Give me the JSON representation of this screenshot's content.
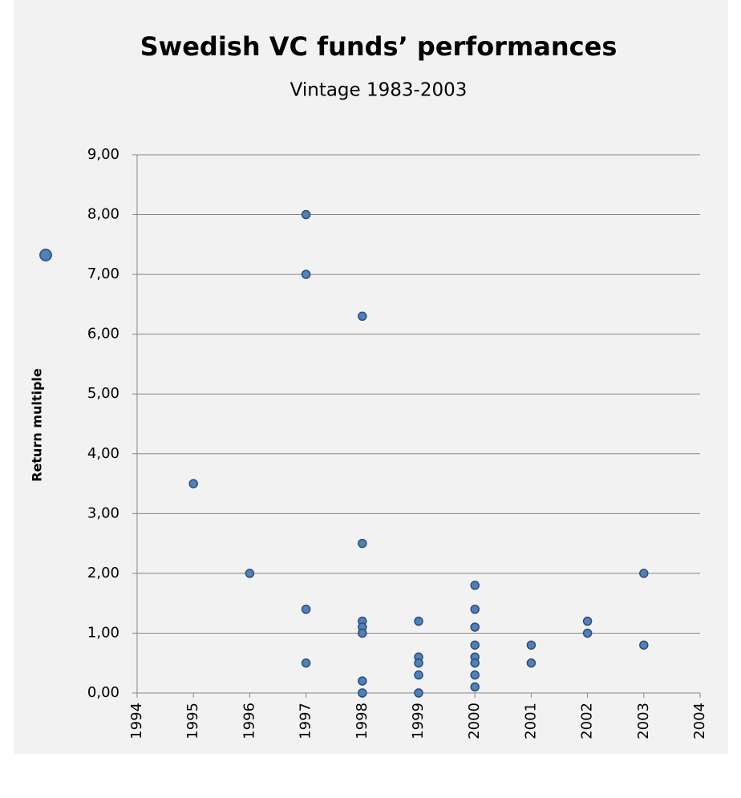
{
  "chart_data": {
    "type": "scatter",
    "title": "Swedish VC funds’ performances",
    "subtitle": "Vintage 1983-2003",
    "y_label": "Return multiple",
    "series": [
      {
        "color": "#4f81bd",
        "x": [
          1995,
          1996,
          1997,
          1997,
          1997,
          1997,
          1998,
          1998,
          1998,
          1998,
          1998,
          1998,
          1998,
          1999,
          1999,
          1999,
          1999,
          1999,
          2000,
          2000,
          2000,
          2000,
          2000,
          2000,
          2000,
          2000,
          2001,
          2001,
          2002,
          2002,
          2003,
          2003
        ],
        "values": [
          3.5,
          2.0,
          8.0,
          7.0,
          1.4,
          0.5,
          6.3,
          2.5,
          1.2,
          1.1,
          1.0,
          0.2,
          0.0,
          1.2,
          0.6,
          0.5,
          0.3,
          0.0,
          1.8,
          1.4,
          1.1,
          0.8,
          0.6,
          0.5,
          0.3,
          0.1,
          0.8,
          0.5,
          1.2,
          1.0,
          2.0,
          0.8
        ]
      }
    ],
    "xlim": [
      1994,
      2004
    ],
    "xticks": [
      1994,
      1995,
      1996,
      1997,
      1998,
      1999,
      2000,
      2001,
      2002,
      2003,
      2004
    ],
    "ylim": [
      0,
      9
    ],
    "yticks": [
      {
        "value": 0,
        "label": "0,00"
      },
      {
        "value": 1,
        "label": "1,00"
      },
      {
        "value": 2,
        "label": "2,00"
      },
      {
        "value": 3,
        "label": "3,00"
      },
      {
        "value": 4,
        "label": "4,00"
      },
      {
        "value": 5,
        "label": "5,00"
      },
      {
        "value": 6,
        "label": "6,00"
      },
      {
        "value": 7,
        "label": "7,00"
      },
      {
        "value": 8,
        "label": "8,00"
      },
      {
        "value": 9,
        "label": "9,00"
      }
    ],
    "grid": true
  }
}
